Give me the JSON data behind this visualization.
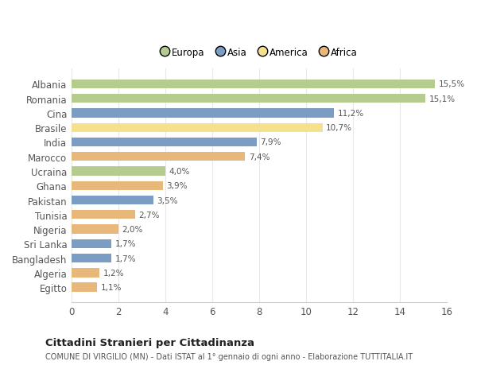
{
  "countries": [
    "Albania",
    "Romania",
    "Cina",
    "Brasile",
    "India",
    "Marocco",
    "Ucraina",
    "Ghana",
    "Pakistan",
    "Tunisia",
    "Nigeria",
    "Sri Lanka",
    "Bangladesh",
    "Algeria",
    "Egitto"
  ],
  "values": [
    15.5,
    15.1,
    11.2,
    10.7,
    7.9,
    7.4,
    4.0,
    3.9,
    3.5,
    2.7,
    2.0,
    1.7,
    1.7,
    1.2,
    1.1
  ],
  "labels": [
    "15,5%",
    "15,1%",
    "11,2%",
    "10,7%",
    "7,9%",
    "7,4%",
    "4,0%",
    "3,9%",
    "3,5%",
    "2,7%",
    "2,0%",
    "1,7%",
    "1,7%",
    "1,2%",
    "1,1%"
  ],
  "colors": [
    "#b5cc8e",
    "#b5cc8e",
    "#7b9dc4",
    "#f5e08e",
    "#7b9dc4",
    "#e8b87a",
    "#b5cc8e",
    "#e8b87a",
    "#7b9dc4",
    "#e8b87a",
    "#e8b87a",
    "#7b9dc4",
    "#7b9dc4",
    "#e8b87a",
    "#e8b87a"
  ],
  "legend": [
    {
      "label": "Europa",
      "color": "#b5cc8e"
    },
    {
      "label": "Asia",
      "color": "#7b9dc4"
    },
    {
      "label": "America",
      "color": "#f5e08e"
    },
    {
      "label": "Africa",
      "color": "#e8b87a"
    }
  ],
  "title": "Cittadini Stranieri per Cittadinanza",
  "subtitle": "COMUNE DI VIRGILIO (MN) - Dati ISTAT al 1° gennaio di ogni anno - Elaborazione TUTTITALIA.IT",
  "xlim": [
    0,
    16
  ],
  "xticks": [
    0,
    2,
    4,
    6,
    8,
    10,
    12,
    14,
    16
  ],
  "background_color": "#ffffff",
  "grid_color": "#e8e8e8"
}
